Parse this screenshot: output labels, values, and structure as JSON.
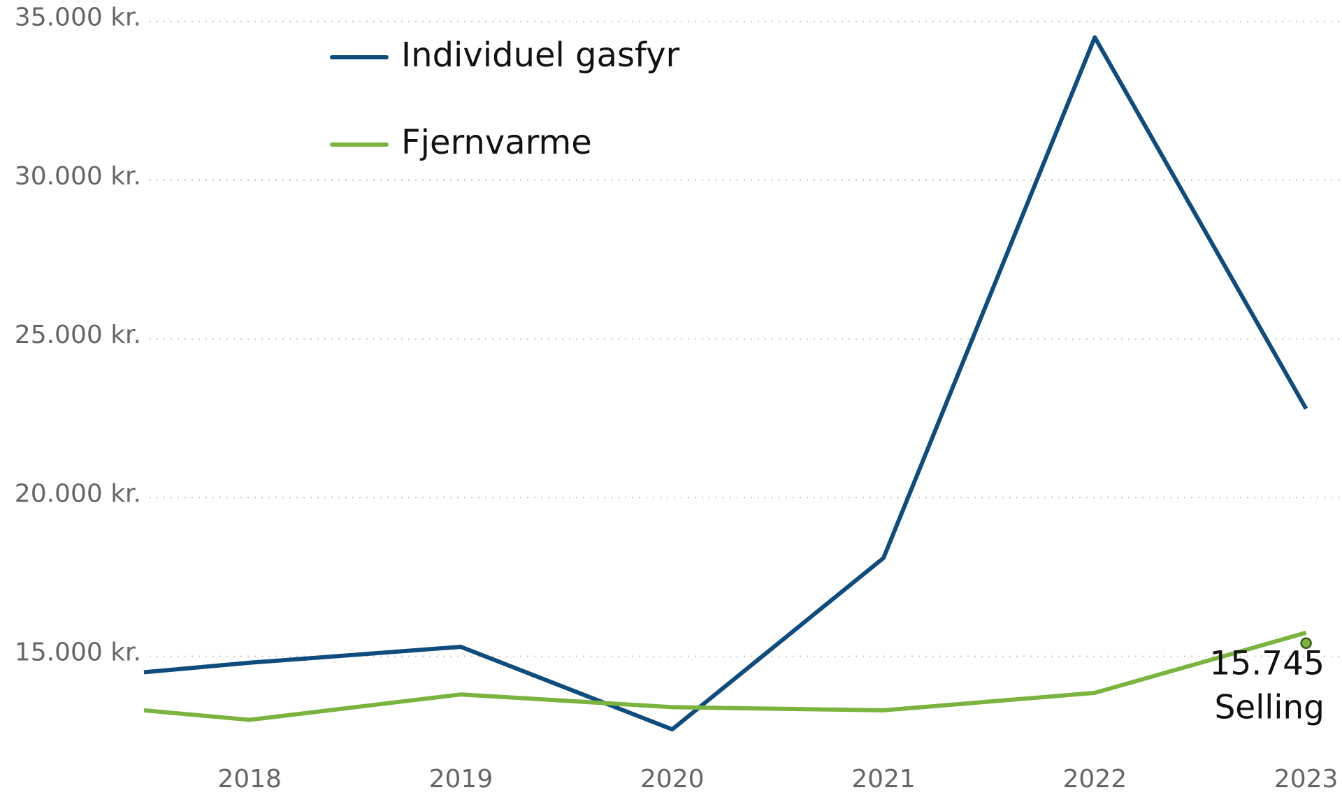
{
  "chart_data": {
    "type": "line",
    "x": [
      2017.5,
      2018,
      2019,
      2020,
      2021,
      2022,
      2023
    ],
    "xlim": [
      2017.5,
      2023.17
    ],
    "xticks": [
      2018,
      2019,
      2020,
      2021,
      2022,
      2023
    ],
    "ylim": [
      12000,
      35500
    ],
    "yticks": [
      {
        "value": 15000,
        "label": "15.000 kr."
      },
      {
        "value": 20000,
        "label": "20.000 kr."
      },
      {
        "value": 25000,
        "label": "25.000 kr."
      },
      {
        "value": 30000,
        "label": "30.000 kr."
      },
      {
        "value": 35000,
        "label": "35.000 kr."
      }
    ],
    "grid": true,
    "legend": "top-left",
    "series": [
      {
        "name": "Individuel gasfyr",
        "color": "#0e4c7e",
        "values": [
          14500,
          14800,
          15300,
          12700,
          18100,
          34500,
          22800
        ]
      },
      {
        "name": "Fjernvarme",
        "color": "#7ab33e",
        "values": [
          13300,
          13000,
          13800,
          13400,
          13300,
          13850,
          15745
        ],
        "value_labels": [
          null,
          null,
          null,
          null,
          null,
          null,
          "15.745"
        ]
      }
    ],
    "annotation": "Selling"
  }
}
